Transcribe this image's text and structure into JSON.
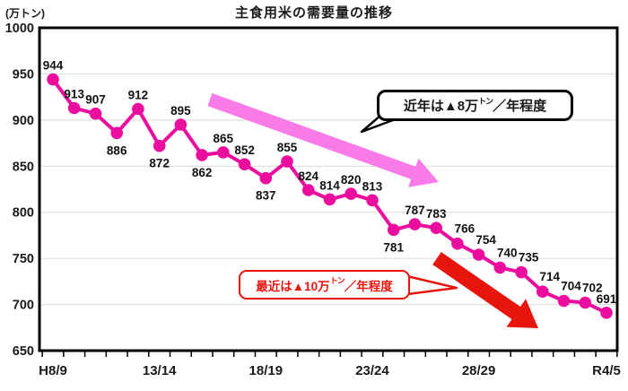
{
  "title": "主食用米の需要量の推移",
  "y_axis_unit": "(万トン)",
  "annotations": {
    "recent_trend": {
      "prefix": "近年は▲8万",
      "ton_small": "トン",
      "suffix": "／年程度"
    },
    "latest_trend": {
      "prefix": "最近は▲10万",
      "ton_small": "トン",
      "suffix": "／年程度"
    }
  },
  "colors": {
    "line": "#eb0d9e",
    "marker": "#eb0d9e",
    "pink_arrow": "#f87be8",
    "red": "#e8150f",
    "grid": "#d8d8d8",
    "axis": "#000000",
    "value_label": "#111111"
  },
  "chart_data": {
    "type": "line",
    "title": "主食用米の需要量の推移",
    "ylabel": "(万トン)",
    "n_points": 27,
    "values": [
      944,
      913,
      907,
      886,
      912,
      872,
      895,
      862,
      865,
      852,
      837,
      855,
      824,
      814,
      820,
      813,
      781,
      787,
      783,
      766,
      754,
      740,
      735,
      714,
      704,
      702,
      691
    ],
    "label_positions": [
      "a",
      "a",
      "a",
      "b",
      "a",
      "b",
      "a",
      "b",
      "a",
      "a",
      "b",
      "a",
      "a",
      "a",
      "a",
      "a",
      "b",
      "a",
      "a",
      "ar",
      "ar",
      "ar",
      "ar",
      "ar",
      "ar",
      "ar",
      "a"
    ],
    "x_tick_labels": {
      "0": "H8/9",
      "5": "13/14",
      "10": "18/19",
      "15": "23/24",
      "20": "28/29",
      "26": "R4/5"
    },
    "y_ticks": [
      1000,
      950,
      900,
      850,
      800,
      750,
      700,
      650
    ],
    "grid_values": [
      950,
      900,
      850,
      800,
      750,
      700
    ],
    "ylim": [
      650,
      1000
    ],
    "legend": "none",
    "grid": "horizontal",
    "arrows": [
      {
        "name": "gradual-decline-arrow",
        "color": "#f87be8",
        "from": [
          234,
          111
        ],
        "to": [
          489,
          203
        ],
        "shaft": 15,
        "head_w": 34,
        "head_l": 30
      },
      {
        "name": "steep-decline-arrow",
        "color": "#e8150f",
        "from": [
          487,
          288
        ],
        "to": [
          600,
          366
        ],
        "shaft": 17,
        "head_w": 38,
        "head_l": 30
      }
    ]
  }
}
